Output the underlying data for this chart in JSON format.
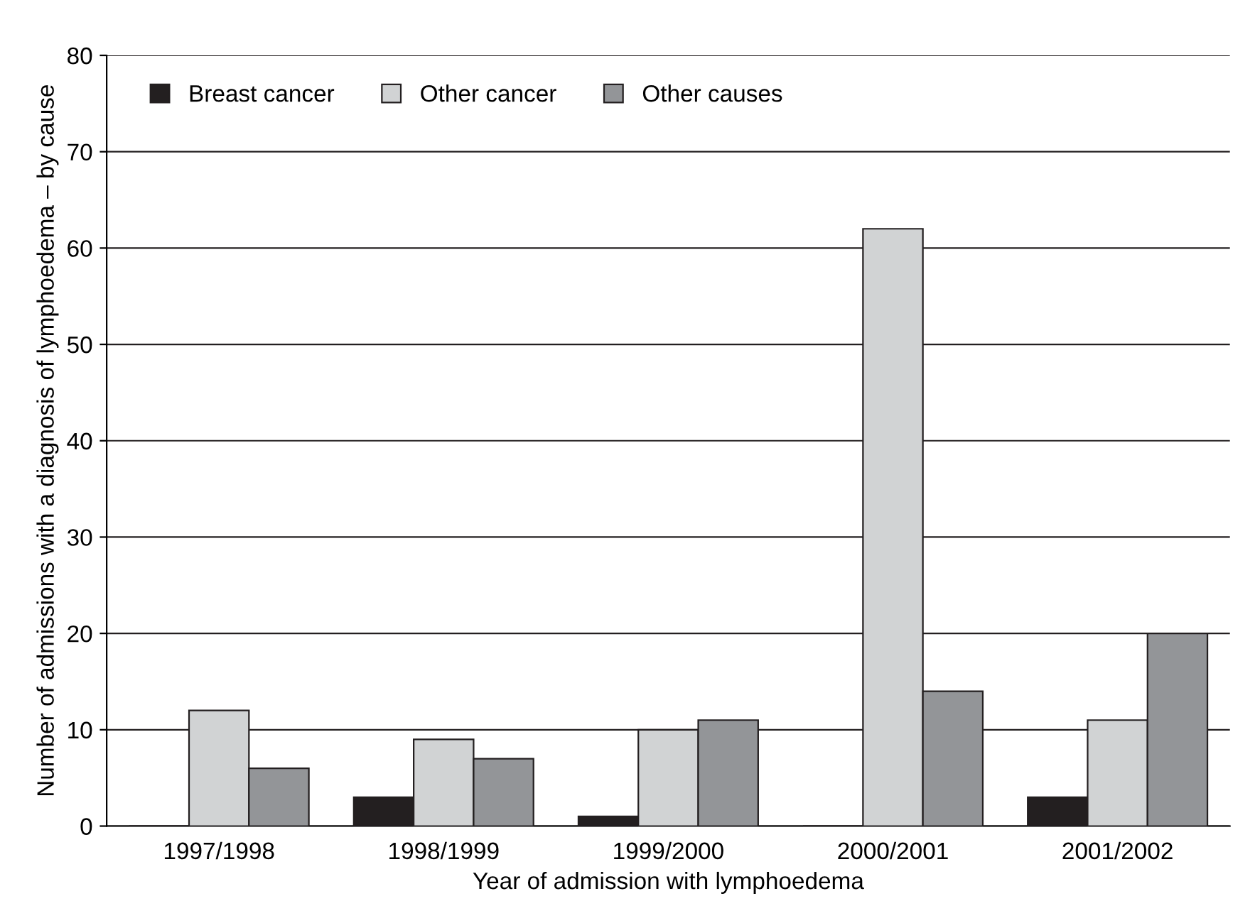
{
  "chart_data": {
    "type": "bar",
    "xlabel": "Year of admission with lymphoedema",
    "ylabel": "Number of admissions with a diagnosis of lymphoedema – by cause",
    "categories": [
      "1997/1998",
      "1998/1999",
      "1999/2000",
      "2000/2001",
      "2001/2002"
    ],
    "series": [
      {
        "name": "Breast cancer",
        "color": "#231f20",
        "values": [
          0,
          3,
          1,
          0,
          3
        ]
      },
      {
        "name": "Other cancer",
        "color": "#d1d3d4",
        "values": [
          12,
          9,
          10,
          62,
          11
        ]
      },
      {
        "name": "Other causes",
        "color": "#939598",
        "values": [
          6,
          7,
          11,
          14,
          20
        ]
      }
    ],
    "ylim": [
      0,
      80
    ],
    "yticks": [
      0,
      10,
      20,
      30,
      40,
      50,
      60,
      70,
      80
    ],
    "grid": "y",
    "legend": "top left"
  }
}
